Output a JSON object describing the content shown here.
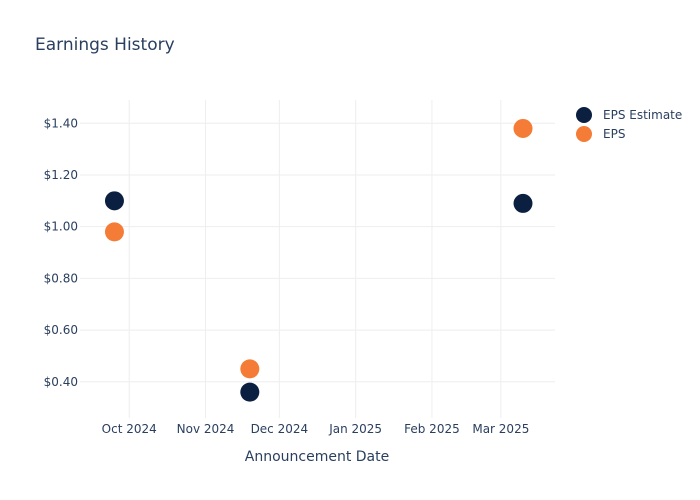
{
  "chart_data": {
    "type": "scatter",
    "title": "Earnings History",
    "xlabel": "Announcement Date",
    "ylabel": "",
    "x_ticks": [
      {
        "date": "2024-10-01",
        "label": "Oct 2024"
      },
      {
        "date": "2024-11-01",
        "label": "Nov 2024"
      },
      {
        "date": "2024-12-01",
        "label": "Dec 2024"
      },
      {
        "date": "2025-01-01",
        "label": "Jan 2025"
      },
      {
        "date": "2025-02-01",
        "label": "Feb 2025"
      },
      {
        "date": "2025-03-01",
        "label": "Mar 2025"
      }
    ],
    "y_ticks": [
      {
        "value": 0.4,
        "label": "$0.40"
      },
      {
        "value": 0.6,
        "label": "$0.60"
      },
      {
        "value": 0.8,
        "label": "$0.80"
      },
      {
        "value": 1.0,
        "label": "$1.00"
      },
      {
        "value": 1.2,
        "label": "$1.20"
      },
      {
        "value": 1.4,
        "label": "$1.40"
      }
    ],
    "xlim": [
      "2024-09-11",
      "2025-03-23"
    ],
    "ylim": [
      0.26,
      1.49
    ],
    "grid": true,
    "legend_position": "top-right",
    "series": [
      {
        "name": "EPS Estimate",
        "color": "#0b1f40",
        "points": [
          {
            "x": "2024-09-25",
            "y": 1.1
          },
          {
            "x": "2024-11-19",
            "y": 0.36
          },
          {
            "x": "2025-03-10",
            "y": 1.09
          }
        ]
      },
      {
        "name": "EPS",
        "color": "#f47c36",
        "points": [
          {
            "x": "2024-09-25",
            "y": 0.98
          },
          {
            "x": "2024-11-19",
            "y": 0.45
          },
          {
            "x": "2025-03-10",
            "y": 1.38
          }
        ]
      }
    ]
  }
}
